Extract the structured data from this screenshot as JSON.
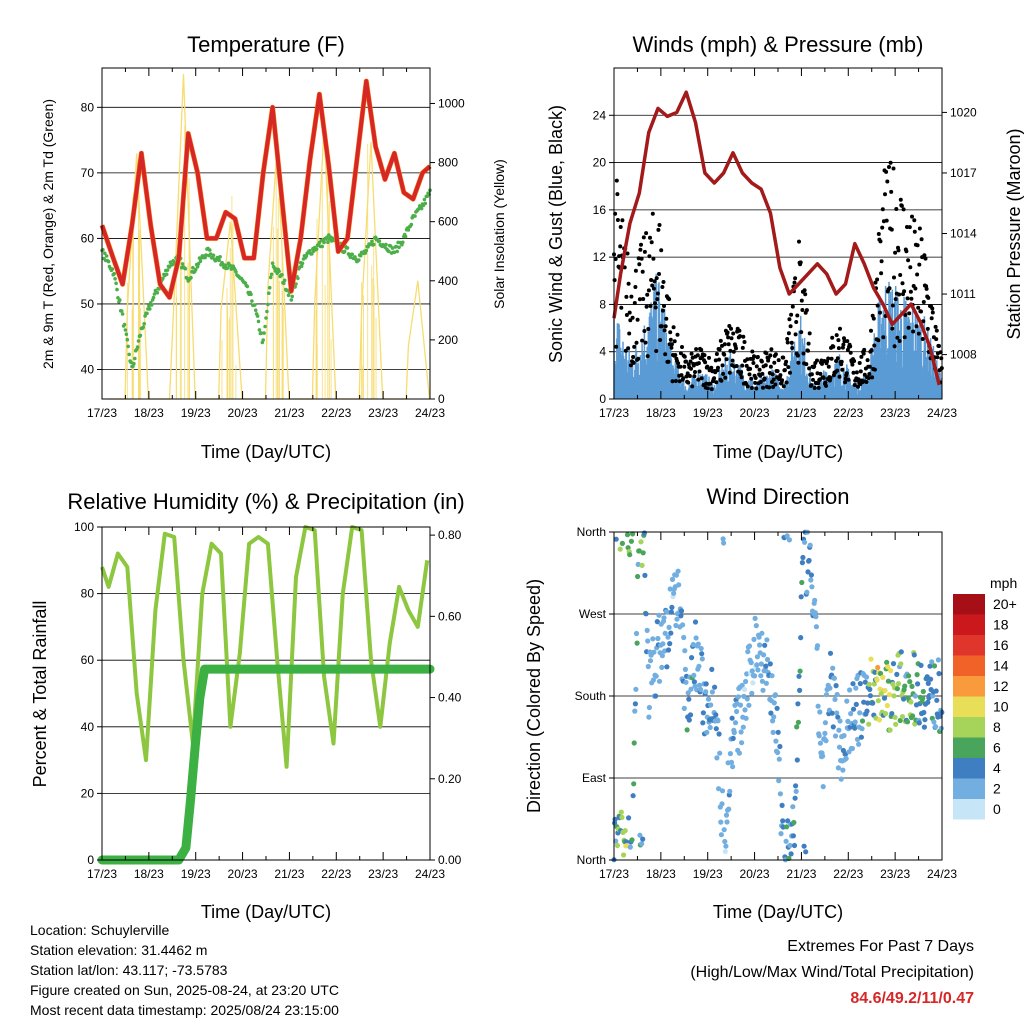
{
  "colors": {
    "temp_red": "#d62728",
    "temp_orange": "#ff7f0e",
    "dewpoint_green": "#4daf4a",
    "solar_yellow": "#f7dc6f",
    "wind_blue": "#5a9bd5",
    "gust_black": "#000000",
    "pressure_maroon": "#a31a1a",
    "rh_lightgreen": "#8dc63f",
    "precip_green": "#3cb043"
  },
  "time_ticks": [
    "17/23",
    "18/23",
    "19/23",
    "20/23",
    "21/23",
    "22/23",
    "23/23",
    "24/23"
  ],
  "panels": {
    "temperature": {
      "title": "Temperature (F)",
      "xlabel": "Time (Day/UTC)",
      "ylabel_left": "2m & 9m T (Red, Orange) & 2m Td (Green)",
      "ylabel_right": "Solar Insolation (Yellow)",
      "yticks_left": [
        "40",
        "50",
        "60",
        "70",
        "80"
      ],
      "yticks_right": [
        "0",
        "200",
        "400",
        "600",
        "800",
        "1000"
      ]
    },
    "winds": {
      "title": "Winds (mph) & Pressure (mb)",
      "xlabel": "Time (Day/UTC)",
      "ylabel_left": "Sonic Wind & Gust (Blue, Black)",
      "ylabel_right": "Station Pressure (Maroon)",
      "yticks_left": [
        "0",
        "4",
        "8",
        "12",
        "16",
        "20",
        "24"
      ],
      "yticks_right": [
        "1008",
        "1011",
        "1014",
        "1017",
        "1020"
      ]
    },
    "humidity": {
      "title": "Relative Humidity (%) & Precipitation (in)",
      "xlabel": "Time (Day/UTC)",
      "ylabel_left": "Percent & Total Rainfall",
      "yticks_left": [
        "0",
        "20",
        "40",
        "60",
        "80",
        "100"
      ],
      "yticks_right": [
        "0.00",
        "0.20",
        "0.40",
        "0.60",
        "0.80"
      ]
    },
    "direction": {
      "title": "Wind Direction",
      "xlabel": "Time (Day/UTC)",
      "ylabel_left": "Direction (Colored By Speed)",
      "yticks_left": [
        "North",
        "East",
        "South",
        "West",
        "North"
      ]
    }
  },
  "legend": {
    "title": "mph",
    "labels": [
      "20+",
      "18",
      "16",
      "14",
      "12",
      "10",
      "8",
      "6",
      "4",
      "2",
      "0"
    ],
    "colors": [
      "#a50f15",
      "#cb181d",
      "#e0352a",
      "#f16228",
      "#f99b3d",
      "#e8de57",
      "#a6d45a",
      "#4aa55c",
      "#3f7fc1",
      "#72afe0",
      "#c6e6f8"
    ]
  },
  "info": {
    "location": "Location: Schuylerville",
    "elevation": "Station elevation: 31.4462 m",
    "latlon": "Station lat/lon: 43.117; -73.5783",
    "created": "Figure created on Sun, 2025-08-24, at 23:20 UTC",
    "latest": "Most recent data timestamp: 2025/08/24 23:15:00"
  },
  "extremes": {
    "title": "Extremes For Past 7 Days",
    "subtitle": "(High/Low/Max Wind/Total Precipitation)",
    "values": "84.6/49.2/11/0.47"
  },
  "chart_data": [
    {
      "type": "line",
      "title": "Temperature (F)",
      "xlabel": "Time (Day/UTC)",
      "ylabel": "2m & 9m T (Red, Orange) & 2m Td (Green)",
      "y2label": "Solar Insolation (Yellow)",
      "x_range_days": [
        17.96,
        24.96
      ],
      "ylim": [
        35.5,
        86
      ],
      "y2lim": [
        0,
        1120
      ],
      "series": [
        {
          "name": "2m T",
          "axis": "left",
          "x": [
            17.96,
            18.2,
            18.4,
            18.6,
            18.8,
            19.0,
            19.2,
            19.4,
            19.6,
            19.8,
            20.0,
            20.2,
            20.4,
            20.6,
            20.8,
            21.0,
            21.2,
            21.4,
            21.6,
            21.8,
            22.0,
            22.2,
            22.4,
            22.6,
            22.8,
            23.0,
            23.2,
            23.4,
            23.6,
            23.8,
            24.0,
            24.2,
            24.4,
            24.6,
            24.8,
            24.96
          ],
          "y": [
            62,
            57,
            53,
            62,
            73,
            62,
            53,
            51,
            57,
            76,
            70,
            60,
            60,
            64,
            63,
            57,
            57,
            70,
            80,
            66,
            52,
            60,
            72,
            82,
            71,
            58,
            60,
            72,
            84,
            74,
            69,
            73,
            67,
            66,
            70,
            71
          ]
        },
        {
          "name": "2m Td",
          "axis": "left",
          "x": [
            17.96,
            18.2,
            18.4,
            18.6,
            18.8,
            19.0,
            19.2,
            19.4,
            19.6,
            19.8,
            20.0,
            20.2,
            20.4,
            20.6,
            20.8,
            21.0,
            21.2,
            21.4,
            21.6,
            21.8,
            22.0,
            22.2,
            22.4,
            22.6,
            22.8,
            23.0,
            23.2,
            23.4,
            23.6,
            23.8,
            24.0,
            24.2,
            24.4,
            24.6,
            24.8,
            24.96
          ],
          "y": [
            58,
            55,
            48,
            40,
            46,
            50,
            53,
            56,
            57,
            54,
            56,
            58,
            57,
            56,
            55,
            53,
            50,
            44,
            56,
            54,
            51,
            56,
            58,
            59,
            60,
            59,
            58,
            57,
            58,
            60,
            59,
            58,
            60,
            63,
            65,
            67
          ]
        },
        {
          "name": "Solar Insolation",
          "axis": "right",
          "x": [
            18.1,
            18.45,
            18.5,
            18.7,
            18.95,
            19.1,
            19.4,
            19.5,
            19.7,
            19.95,
            20.1,
            20.45,
            20.5,
            20.7,
            20.95,
            21.1,
            21.45,
            21.5,
            21.7,
            21.95,
            22.1,
            22.45,
            22.5,
            22.7,
            22.95,
            23.1,
            23.45,
            23.5,
            23.7,
            23.95,
            24.1,
            24.45,
            24.5,
            24.7,
            24.95
          ],
          "y": [
            0,
            0,
            300,
            830,
            0,
            0,
            0,
            350,
            1100,
            0,
            0,
            0,
            300,
            600,
            0,
            0,
            0,
            380,
            860,
            0,
            0,
            0,
            320,
            920,
            0,
            0,
            0,
            300,
            870,
            0,
            0,
            0,
            180,
            400,
            0
          ]
        }
      ]
    },
    {
      "type": "line",
      "title": "Winds (mph) & Pressure (mb)",
      "xlabel": "Time (Day/UTC)",
      "ylabel": "Sonic Wind & Gust (Blue, Black)",
      "y2label": "Station Pressure (Maroon)",
      "x_range_days": [
        17.96,
        24.96
      ],
      "ylim": [
        0,
        28
      ],
      "y2lim": [
        1005.8,
        1022.2
      ],
      "series": [
        {
          "name": "Sonic Wind",
          "axis": "left",
          "x": [
            17.96,
            18.3,
            18.6,
            18.9,
            19.2,
            19.5,
            19.8,
            20.1,
            20.4,
            20.7,
            21.0,
            21.3,
            21.6,
            21.9,
            22.2,
            22.5,
            22.8,
            23.1,
            23.4,
            23.7,
            24.0,
            24.3,
            24.6,
            24.9
          ],
          "y": [
            6,
            3,
            5,
            8,
            3,
            1,
            2,
            1,
            3,
            2,
            1,
            2,
            1,
            6,
            1,
            2,
            3,
            1,
            2,
            8,
            7,
            6,
            5,
            2
          ]
        },
        {
          "name": "Gust",
          "axis": "left",
          "x": [
            17.96,
            18.3,
            18.6,
            18.9,
            19.2,
            19.5,
            19.8,
            20.1,
            20.4,
            20.7,
            21.0,
            21.3,
            21.6,
            21.9,
            22.2,
            22.5,
            22.8,
            23.1,
            23.4,
            23.7,
            24.0,
            24.3,
            24.6,
            24.9
          ],
          "y": [
            18,
            10,
            12,
            15,
            6,
            3,
            4,
            3,
            6,
            5,
            3,
            4,
            3,
            12,
            3,
            4,
            6,
            3,
            4,
            17,
            18,
            14,
            12,
            4
          ]
        },
        {
          "name": "Station Pressure",
          "axis": "right",
          "x": [
            17.96,
            18.1,
            18.3,
            18.5,
            18.7,
            18.9,
            19.1,
            19.3,
            19.5,
            19.7,
            19.9,
            20.1,
            20.3,
            20.5,
            20.7,
            20.9,
            21.1,
            21.3,
            21.5,
            21.7,
            21.9,
            22.1,
            22.3,
            22.5,
            22.7,
            22.9,
            23.1,
            23.3,
            23.5,
            23.7,
            23.9,
            24.1,
            24.3,
            24.5,
            24.7,
            24.9
          ],
          "y": [
            1009.8,
            1012,
            1014.5,
            1016,
            1019,
            1020.2,
            1019.8,
            1020,
            1021,
            1019.5,
            1017,
            1016.5,
            1017,
            1018,
            1017,
            1016.5,
            1016.2,
            1015,
            1012.3,
            1011,
            1011.5,
            1012,
            1012.5,
            1012,
            1011,
            1011.5,
            1013.5,
            1012.5,
            1011.3,
            1010.5,
            1009.5,
            1010,
            1010.5,
            1009.6,
            1008.4,
            1006.5
          ]
        }
      ]
    },
    {
      "type": "line",
      "title": "Relative Humidity (%) & Precipitation (in)",
      "xlabel": "Time (Day/UTC)",
      "ylabel": "Percent & Total Rainfall",
      "x_range_days": [
        17.96,
        24.96
      ],
      "ylim": [
        0,
        100
      ],
      "y2lim": [
        0,
        0.82
      ],
      "series": [
        {
          "name": "Relative Humidity",
          "axis": "left",
          "x": [
            17.96,
            18.1,
            18.3,
            18.5,
            18.7,
            18.9,
            19.1,
            19.3,
            19.5,
            19.7,
            19.9,
            20.1,
            20.3,
            20.5,
            20.7,
            20.9,
            21.1,
            21.3,
            21.5,
            21.7,
            21.9,
            22.1,
            22.3,
            22.5,
            22.7,
            22.9,
            23.1,
            23.3,
            23.5,
            23.7,
            23.9,
            24.1,
            24.3,
            24.5,
            24.7,
            24.9
          ],
          "y": [
            88,
            82,
            92,
            88,
            50,
            30,
            75,
            98,
            97,
            60,
            35,
            80,
            95,
            92,
            40,
            62,
            95,
            97,
            95,
            60,
            28,
            85,
            100,
            99,
            55,
            35,
            80,
            100,
            99,
            60,
            40,
            65,
            82,
            75,
            70,
            90
          ]
        },
        {
          "name": "Total Precipitation",
          "axis": "right",
          "x": [
            17.96,
            19.6,
            19.75,
            19.85,
            19.95,
            20.05,
            20.15,
            24.96
          ],
          "y": [
            0,
            0,
            0.03,
            0.15,
            0.28,
            0.4,
            0.47,
            0.47
          ]
        }
      ]
    },
    {
      "type": "scatter",
      "title": "Wind Direction",
      "xlabel": "Time (Day/UTC)",
      "ylabel": "Direction (Colored By Speed)",
      "x_range_days": [
        17.96,
        24.96
      ],
      "ylim_degrees": [
        0,
        360
      ],
      "legend_title": "mph",
      "series": [
        {
          "name": "Wind Direction",
          "x": [
            18.1,
            18.2,
            18.35,
            18.5,
            18.6,
            18.7,
            18.9,
            19.1,
            19.3,
            19.5,
            19.6,
            19.7,
            19.9,
            20.1,
            20.3,
            20.5,
            20.7,
            21.0,
            21.2,
            21.4,
            21.6,
            21.8,
            22.0,
            22.2,
            22.4,
            22.6,
            22.8,
            23.0,
            23.2,
            23.4,
            23.6,
            23.8,
            24.0,
            24.3,
            24.6,
            24.9
          ],
          "y": [
            15,
            20,
            12,
            355,
            350,
            190,
            230,
            250,
            300,
            180,
            185,
            230,
            170,
            190,
            20,
            140,
            160,
            240,
            220,
            160,
            10,
            20,
            340,
            300,
            100,
            200,
            120,
            155,
            165,
            185,
            190,
            180,
            190,
            190,
            185,
            180
          ],
          "speed": [
            6,
            8,
            5,
            5,
            7,
            2,
            3,
            3,
            2,
            4,
            5,
            3,
            3,
            4,
            2,
            3,
            2,
            2,
            3,
            3,
            4,
            5,
            4,
            3,
            2,
            3,
            3,
            3,
            4,
            7,
            9,
            8,
            7,
            6,
            5,
            4
          ]
        }
      ]
    }
  ]
}
